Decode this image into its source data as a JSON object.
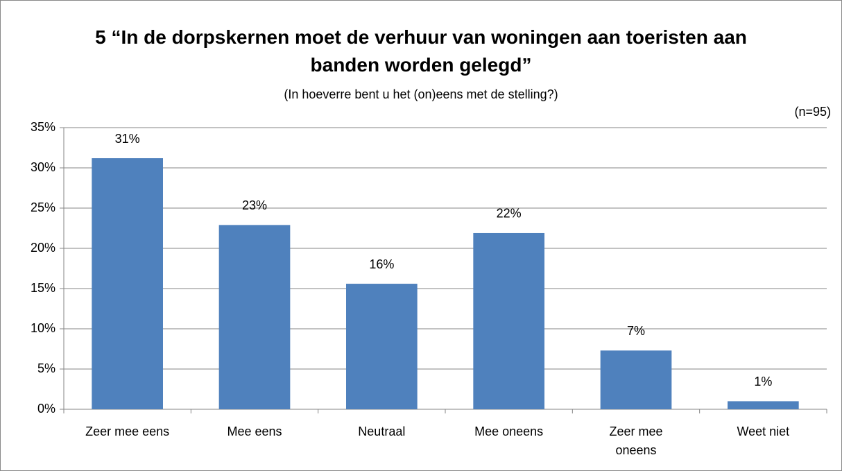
{
  "chart_data": {
    "type": "bar",
    "title": "5 “In de dorpskernen moet de verhuur van woningen aan toeristen aan banden worden gelegd”",
    "subtitle": "(In hoeverre bent u het (on)eens met de stelling?)",
    "annotation": "(n=95)",
    "categories": [
      "Zeer mee eens",
      "Mee eens",
      "Neutraal",
      "Mee oneens",
      "Zeer mee oneens",
      "Weet niet"
    ],
    "values": [
      31.2,
      22.9,
      15.6,
      21.9,
      7.3,
      1.0
    ],
    "value_labels": [
      "31%",
      "23%",
      "16%",
      "22%",
      "7%",
      "1%"
    ],
    "color": "#4f81bd",
    "ylim": [
      0,
      35
    ],
    "yticks": [
      {
        "value": 0,
        "label": "0%"
      },
      {
        "value": 5,
        "label": "5%"
      },
      {
        "value": 10,
        "label": "10%"
      },
      {
        "value": 15,
        "label": "15%"
      },
      {
        "value": 20,
        "label": "20%"
      },
      {
        "value": 25,
        "label": "25%"
      },
      {
        "value": 30,
        "label": "30%"
      },
      {
        "value": 35,
        "label": "35%"
      }
    ],
    "grid": true
  }
}
